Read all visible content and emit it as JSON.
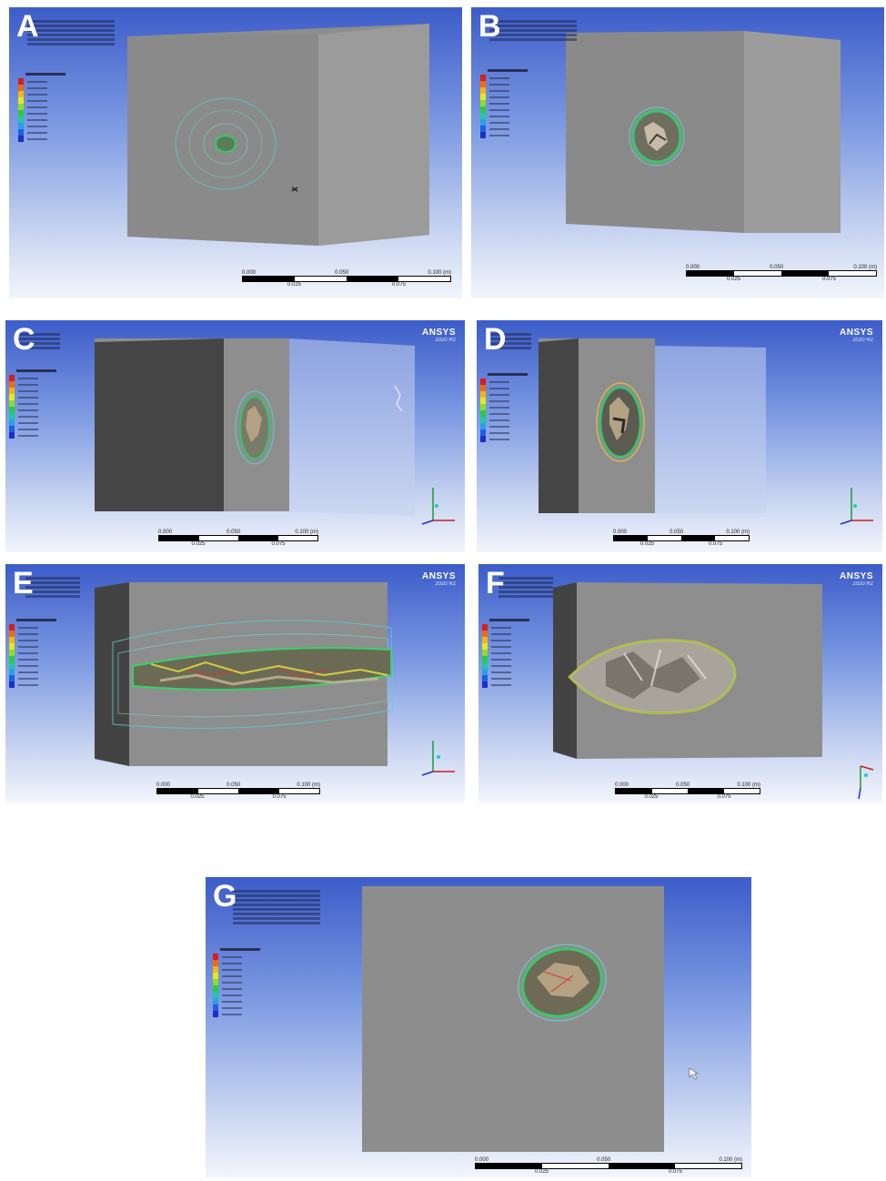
{
  "panels": [
    {
      "label": "A",
      "ansys": false,
      "scale": {
        "top": [
          "0.000",
          "0.050",
          "0.100 (m)"
        ],
        "bottom": [
          "0.025",
          "0.075"
        ]
      }
    },
    {
      "label": "B",
      "ansys": false,
      "scale": {
        "top": [
          "0.000",
          "0.050",
          "0.100 (m)"
        ],
        "bottom": [
          "0.025",
          "0.075"
        ]
      }
    },
    {
      "label": "C",
      "ansys": true,
      "scale": {
        "top": [
          "0.000",
          "0.050",
          "0.100 (m)"
        ],
        "bottom": [
          "0.025",
          "0.075"
        ]
      }
    },
    {
      "label": "D",
      "ansys": true,
      "scale": {
        "top": [
          "0.000",
          "0.050",
          "0.100 (m)"
        ],
        "bottom": [
          "0.025",
          "0.075"
        ]
      }
    },
    {
      "label": "E",
      "ansys": true,
      "scale": {
        "top": [
          "0.000",
          "0.050",
          "0.100 (m)"
        ],
        "bottom": [
          "0.025",
          "0.075"
        ]
      }
    },
    {
      "label": "F",
      "ansys": true,
      "scale": {
        "top": [
          "0.000",
          "0.050",
          "0.100 (m)"
        ],
        "bottom": [
          "0.025",
          "0.075"
        ]
      }
    },
    {
      "label": "G",
      "ansys": false,
      "scale": {
        "top": [
          "0.000",
          "0.050",
          "0.100 (m)"
        ],
        "bottom": [
          "0.025",
          "0.075"
        ]
      }
    }
  ],
  "ansys_brand": "ANSYS",
  "ansys_version": "2020 R2",
  "legend_colors": [
    "#d21f1f",
    "#ef6a12",
    "#f3b516",
    "#e5e820",
    "#8fdc2a",
    "#2cc84a",
    "#22c8a4",
    "#2aa0e6",
    "#1f5fe0",
    "#1c2fc8"
  ],
  "colors": {
    "background_top": "#3c5cc9",
    "background_bottom": "#f2f5fc",
    "block_face": "#8a8a8a",
    "block_side": "#474747"
  }
}
